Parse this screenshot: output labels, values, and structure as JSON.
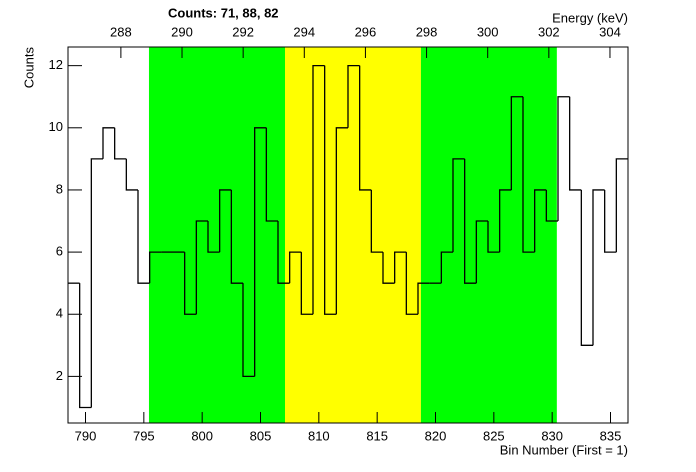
{
  "chart_data": {
    "type": "histogram",
    "title": "Counts:   71,   88,   82",
    "y_label": "Counts",
    "x_label": "Bin Number (First = 1)",
    "x2_label": "Energy (keV)",
    "bins": [
      788.5,
      789.5,
      790.5,
      791.5,
      792.5,
      793.5,
      794.5,
      795.5,
      796.5,
      797.5,
      798.5,
      799.5,
      800.5,
      801.5,
      802.5,
      803.5,
      804.5,
      805.5,
      806.5,
      807.5,
      808.5,
      809.5,
      810.5,
      811.5,
      812.5,
      813.5,
      814.5,
      815.5,
      816.5,
      817.5,
      818.5,
      819.5,
      820.5,
      821.5,
      822.5,
      823.5,
      824.5,
      825.5,
      826.5,
      827.5,
      828.5,
      829.5,
      830.5,
      831.5,
      832.5,
      833.5,
      834.5,
      835.5,
      836.5
    ],
    "values": [
      5,
      1,
      9,
      10,
      9,
      8,
      5,
      6,
      6,
      6,
      4,
      7,
      6,
      8,
      5,
      2,
      10,
      7,
      5,
      6,
      4,
      12,
      4,
      10,
      12,
      8,
      6,
      5,
      6,
      4,
      5,
      5,
      6,
      9,
      5,
      7,
      6,
      8,
      11,
      6,
      8,
      7,
      11,
      8,
      3,
      8,
      6,
      9
    ],
    "color": "#000000",
    "regions": [
      {
        "from": 795.44,
        "to": 807.1,
        "color": "#00ff00"
      },
      {
        "from": 807.1,
        "to": 818.75,
        "color": "#ffff00"
      },
      {
        "from": 818.75,
        "to": 830.4,
        "color": "#00ff00"
      }
    ],
    "xlim": [
      788.5,
      836.5
    ],
    "xticks": [
      790,
      795,
      800,
      805,
      810,
      815,
      820,
      825,
      830,
      835
    ],
    "x2lim": [
      286.27,
      304.59
    ],
    "x2ticks": [
      288,
      290,
      292,
      294,
      296,
      298,
      300,
      302,
      304
    ],
    "ylim": [
      0.5,
      12.6
    ],
    "yticks": [
      2,
      4,
      6,
      8,
      10,
      12
    ]
  }
}
